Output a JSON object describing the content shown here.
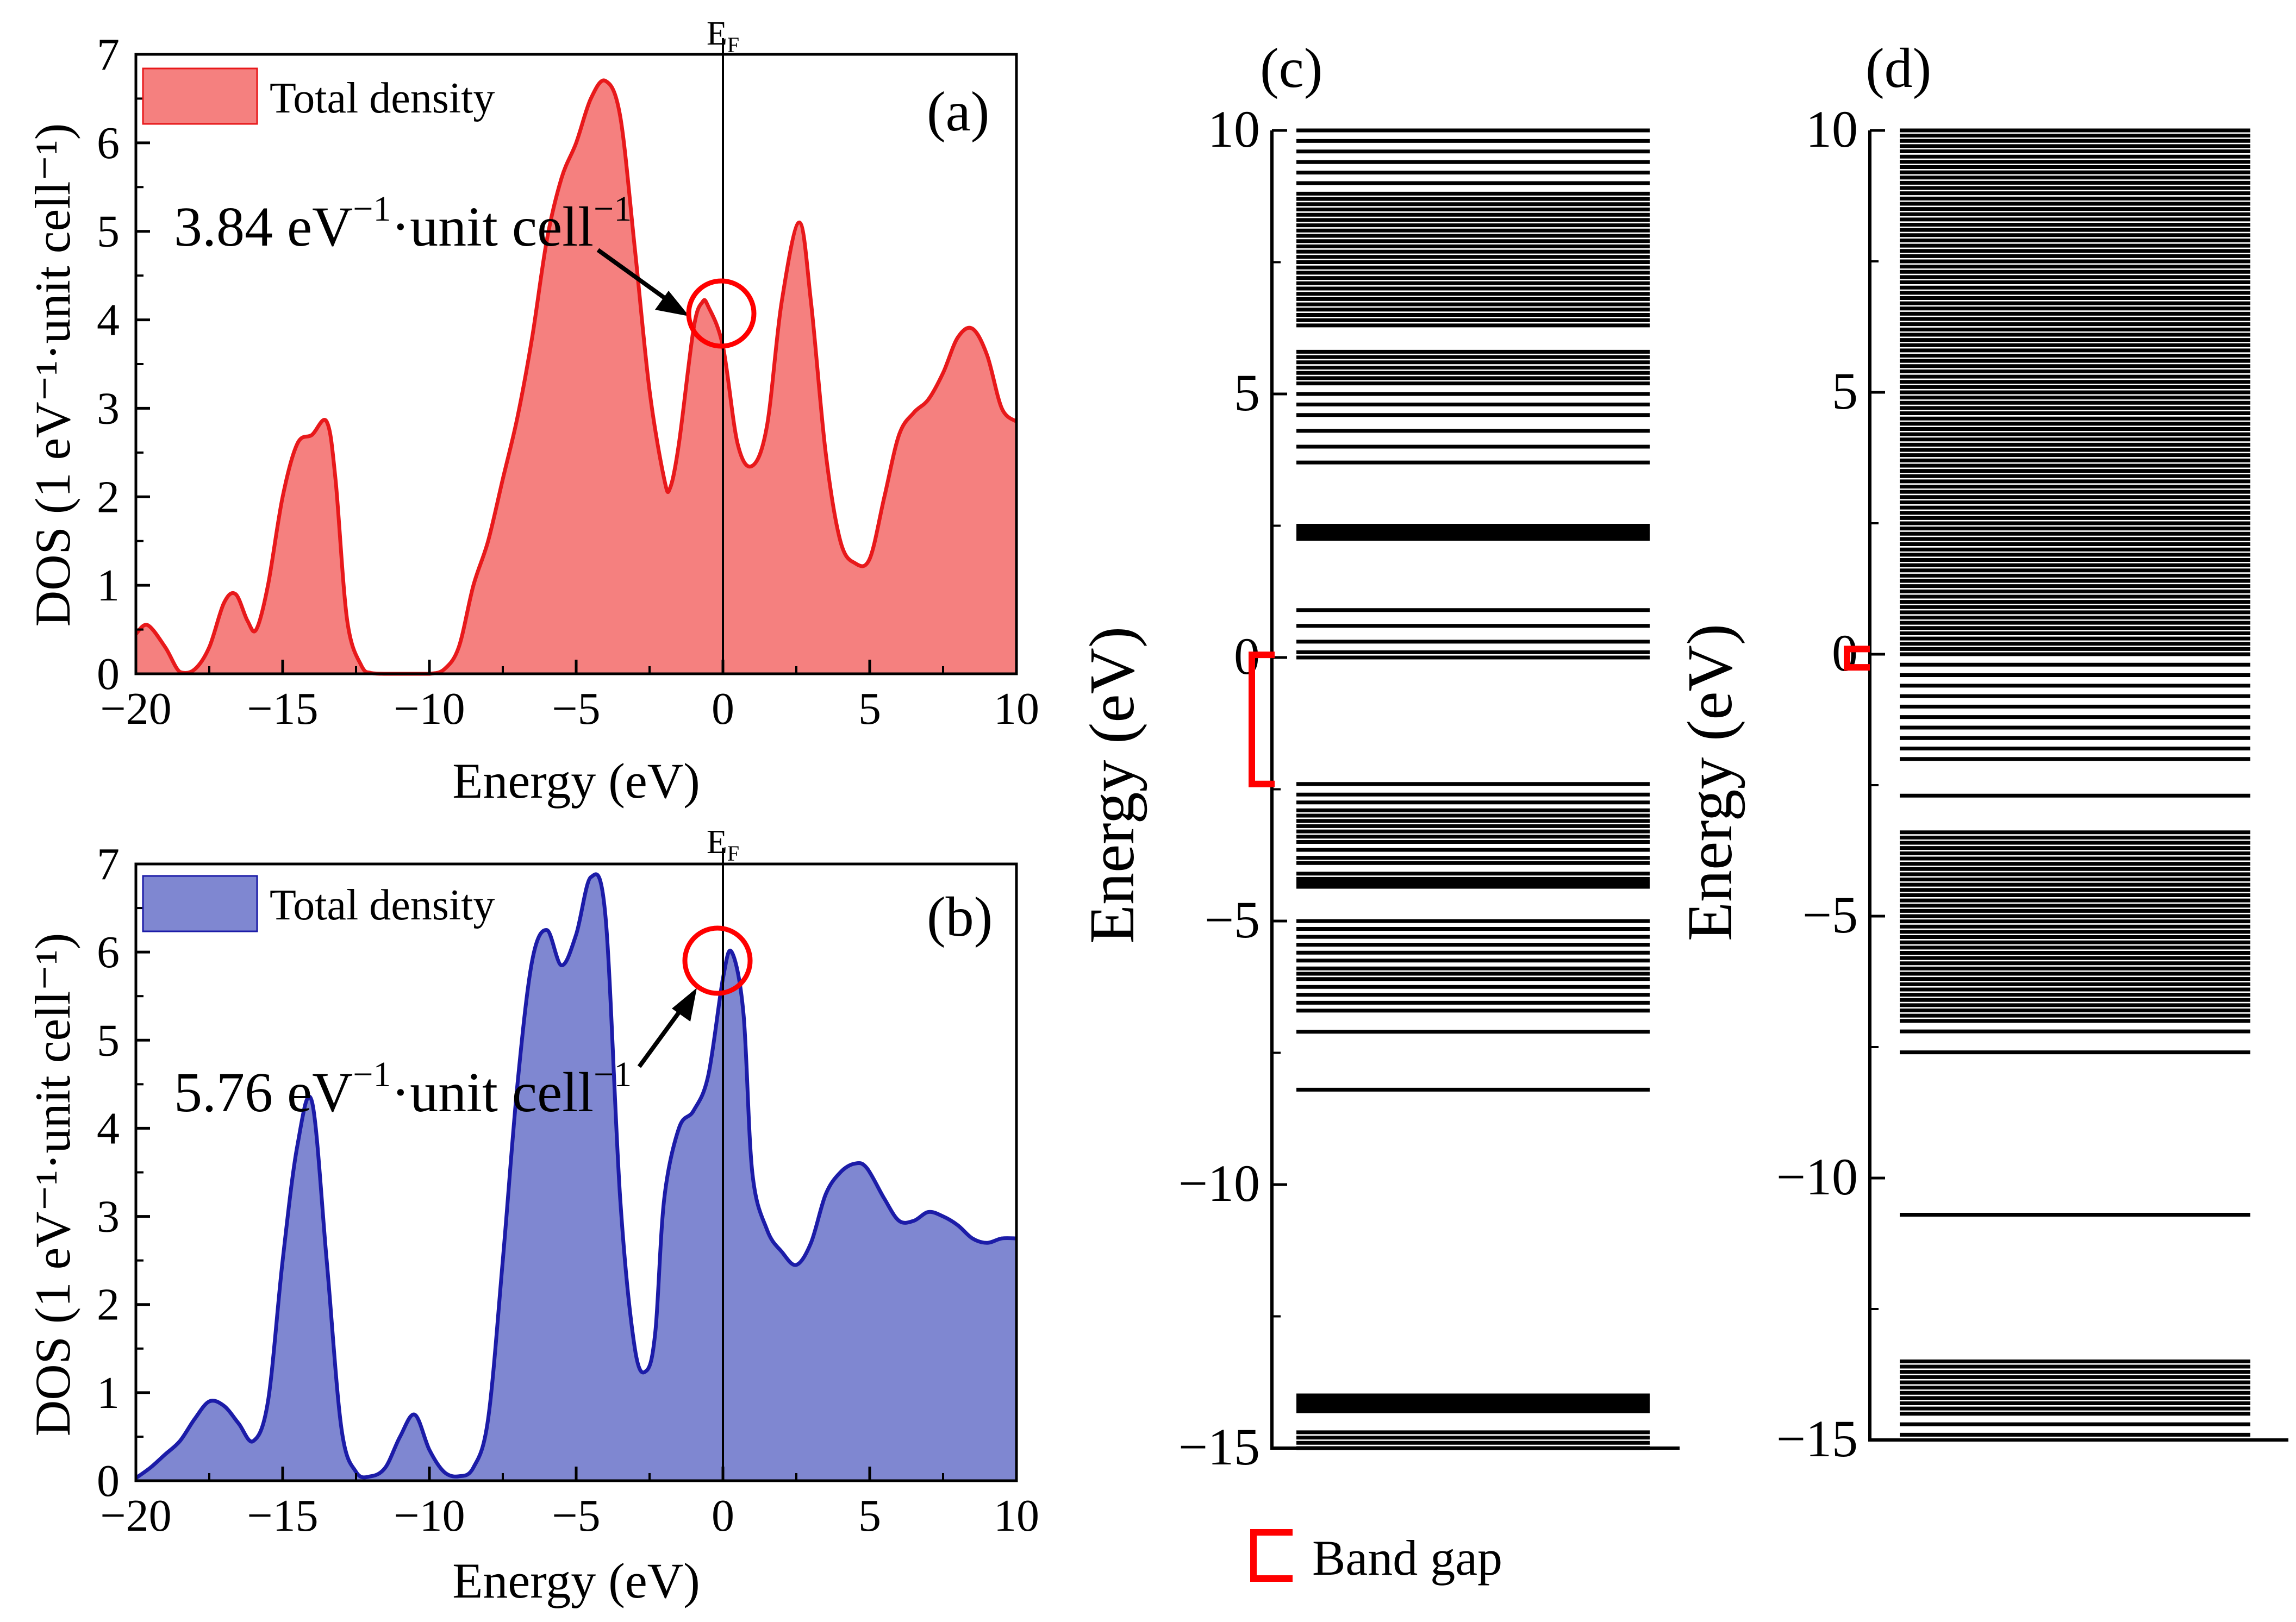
{
  "chart_data": [
    {
      "id": "a",
      "type": "area",
      "panel_label": "(a)",
      "xlabel": "Energy (eV)",
      "ylabel": "DOS (1 eV⁻¹·unit cell⁻¹)",
      "xlim": [
        -20,
        10
      ],
      "ylim": [
        0,
        7
      ],
      "xticks": [
        -20,
        -15,
        -10,
        -5,
        0,
        5,
        10
      ],
      "xtick_labels": [
        "−20",
        "−15",
        "−10",
        "−5",
        "0",
        "5",
        "10"
      ],
      "yticks": [
        0,
        1,
        2,
        3,
        4,
        5,
        6,
        7
      ],
      "ytick_labels": [
        "0",
        "1",
        "2",
        "3",
        "4",
        "5",
        "6",
        "7"
      ],
      "legend": "Total density",
      "fermi_label": "E",
      "fermi_sub": "F",
      "fill_color": "#f5807f",
      "line_color": "#e8191b",
      "annotation": {
        "text_main": "3.84 eV",
        "sup1": "−1",
        "text_mid": "·unit cell",
        "sup2": "−1",
        "at_x": 0,
        "at_y": 4.05
      },
      "series": [
        {
          "name": "Total density",
          "x": [
            -20,
            -19.6,
            -19,
            -18.5,
            -18,
            -17.5,
            -17,
            -16.6,
            -16.2,
            -15.9,
            -15.5,
            -15,
            -14.5,
            -14,
            -13.5,
            -13.2,
            -12.8,
            -12.3,
            -12,
            -11.5,
            -11,
            -10.5,
            -10,
            -9.5,
            -9,
            -8.5,
            -8,
            -7.5,
            -7,
            -6.5,
            -6,
            -5.5,
            -5,
            -4.5,
            -4,
            -3.5,
            -3,
            -2.5,
            -2,
            -1.8,
            -1.5,
            -1,
            -0.7,
            -0.5,
            0,
            0.5,
            1,
            1.5,
            2,
            2.6,
            3,
            3.5,
            4,
            4.5,
            5,
            5.5,
            6,
            6.5,
            7,
            7.5,
            8,
            8.5,
            9,
            9.5,
            10
          ],
          "y": [
            0.45,
            0.55,
            0.3,
            0.02,
            0.05,
            0.3,
            0.8,
            0.9,
            0.6,
            0.5,
            1.0,
            2.0,
            2.6,
            2.7,
            2.85,
            2.2,
            0.6,
            0.08,
            0.01,
            0,
            0,
            0,
            0,
            0.05,
            0.3,
            1.0,
            1.5,
            2.2,
            2.9,
            3.8,
            4.9,
            5.6,
            6.0,
            6.5,
            6.7,
            6.3,
            4.8,
            3.2,
            2.2,
            2.1,
            2.6,
            3.9,
            4.2,
            4.15,
            3.7,
            2.6,
            2.35,
            2.8,
            4.2,
            5.1,
            4.2,
            2.5,
            1.5,
            1.25,
            1.3,
            2.0,
            2.7,
            2.95,
            3.1,
            3.4,
            3.8,
            3.9,
            3.6,
            3.0,
            2.85
          ]
        }
      ]
    },
    {
      "id": "b",
      "type": "area",
      "panel_label": "(b)",
      "xlabel": "Energy (eV)",
      "ylabel": "DOS (1 eV⁻¹·unit cell⁻¹)",
      "xlim": [
        -20,
        10
      ],
      "ylim": [
        0,
        7
      ],
      "xticks": [
        -20,
        -15,
        -10,
        -5,
        0,
        5,
        10
      ],
      "xtick_labels": [
        "−20",
        "−15",
        "−10",
        "−5",
        "0",
        "5",
        "10"
      ],
      "yticks": [
        0,
        1,
        2,
        3,
        4,
        5,
        6,
        7
      ],
      "ytick_labels": [
        "0",
        "1",
        "2",
        "3",
        "4",
        "5",
        "6",
        "7"
      ],
      "legend": "Total density",
      "fermi_label": "E",
      "fermi_sub": "F",
      "fill_color": "#7f87d1",
      "line_color": "#1c1ca8",
      "annotation": {
        "text_main": "5.76 eV",
        "sup1": "−1",
        "text_mid": "·unit cell",
        "sup2": "−1",
        "at_x": 0,
        "at_y": 5.9
      },
      "series": [
        {
          "name": "Total density",
          "x": [
            -20,
            -19.5,
            -19,
            -18.5,
            -18,
            -17.5,
            -17,
            -16.5,
            -16,
            -15.5,
            -15,
            -14.5,
            -14,
            -13.5,
            -13,
            -12.5,
            -12,
            -11.5,
            -11,
            -10.5,
            -10,
            -9.5,
            -9,
            -8.5,
            -8,
            -7.5,
            -7,
            -6.5,
            -6,
            -5.5,
            -5,
            -4.5,
            -4,
            -3.5,
            -3,
            -2.6,
            -2.3,
            -2,
            -1.5,
            -1,
            -0.5,
            0,
            0.3,
            0.7,
            1,
            1.5,
            2,
            2.5,
            3,
            3.5,
            4,
            4.5,
            4.9,
            5.5,
            6,
            6.5,
            7,
            7.5,
            8,
            8.5,
            9,
            9.5,
            10
          ],
          "y": [
            0.03,
            0.15,
            0.3,
            0.45,
            0.7,
            0.9,
            0.85,
            0.65,
            0.45,
            0.9,
            2.5,
            3.8,
            4.3,
            2.5,
            0.6,
            0.1,
            0.05,
            0.15,
            0.5,
            0.75,
            0.35,
            0.1,
            0.05,
            0.15,
            0.7,
            2.5,
            4.5,
            5.9,
            6.25,
            5.85,
            6.2,
            6.85,
            6.4,
            3.2,
            1.5,
            1.25,
            1.7,
            3.2,
            4.0,
            4.2,
            4.6,
            5.7,
            6.0,
            5.3,
            3.5,
            2.85,
            2.6,
            2.45,
            2.7,
            3.25,
            3.5,
            3.6,
            3.55,
            3.2,
            2.95,
            2.95,
            3.05,
            3.0,
            2.9,
            2.75,
            2.7,
            2.75,
            2.75
          ]
        }
      ]
    },
    {
      "id": "c",
      "type": "energy_levels",
      "panel_label": "(c)",
      "ylabel": "Energy (eV)",
      "ylim": [
        -15,
        10
      ],
      "yticks": [
        -15,
        -10,
        -5,
        0,
        5,
        10
      ],
      "ytick_labels": [
        "−15",
        "−10",
        "−5",
        "0",
        "5",
        "10"
      ],
      "band_gap": [
        -2.4,
        0.05
      ],
      "levels": [
        10.0,
        9.8,
        9.6,
        9.4,
        9.2,
        9.0,
        8.8,
        8.7,
        8.6,
        8.5,
        8.4,
        8.3,
        8.2,
        8.1,
        8.0,
        7.9,
        7.8,
        7.7,
        7.6,
        7.5,
        7.4,
        7.3,
        7.2,
        7.1,
        7.0,
        6.9,
        6.8,
        6.7,
        6.6,
        6.5,
        6.4,
        6.3,
        5.8,
        5.7,
        5.6,
        5.5,
        5.4,
        5.3,
        5.2,
        5.0,
        4.8,
        4.6,
        4.3,
        4.0,
        3.7,
        2.5,
        2.45,
        2.4,
        2.35,
        2.3,
        2.25,
        0.9,
        0.6,
        0.3,
        0.1,
        0.0,
        -2.4,
        -2.6,
        -2.75,
        -2.9,
        -3.0,
        -3.1,
        -3.2,
        -3.3,
        -3.4,
        -3.5,
        -3.65,
        -3.8,
        -3.9,
        -4.1,
        -4.2,
        -4.25,
        -4.3,
        -4.35,
        -5.0,
        -5.15,
        -5.3,
        -5.45,
        -5.6,
        -5.75,
        -5.9,
        -6.0,
        -6.1,
        -6.25,
        -6.4,
        -6.55,
        -6.7,
        -7.1,
        -8.2,
        -14.0,
        -14.05,
        -14.1,
        -14.15,
        -14.2,
        -14.25,
        -14.3,
        -14.7,
        -14.8,
        -14.9,
        -15.0
      ]
    },
    {
      "id": "d",
      "type": "energy_levels",
      "panel_label": "(d)",
      "ylabel": "Energy (eV)",
      "ylim": [
        -15,
        10
      ],
      "yticks": [
        -15,
        -10,
        -5,
        0,
        5,
        10
      ],
      "ytick_labels": [
        "−15",
        "−10",
        "−5",
        "0",
        "5",
        "10"
      ],
      "band_gap": [
        -0.25,
        0.1
      ],
      "levels": [
        10.0,
        9.9,
        9.8,
        9.7,
        9.6,
        9.5,
        9.4,
        9.3,
        9.2,
        9.1,
        9.0,
        8.9,
        8.8,
        8.7,
        8.6,
        8.5,
        8.4,
        8.3,
        8.2,
        8.1,
        8.0,
        7.9,
        7.8,
        7.7,
        7.6,
        7.5,
        7.4,
        7.3,
        7.2,
        7.1,
        7.0,
        6.9,
        6.8,
        6.7,
        6.6,
        6.5,
        6.4,
        6.3,
        6.2,
        6.1,
        6.0,
        5.9,
        5.8,
        5.7,
        5.6,
        5.5,
        5.4,
        5.3,
        5.2,
        5.1,
        5.0,
        4.9,
        4.8,
        4.7,
        4.6,
        4.5,
        4.4,
        4.3,
        4.2,
        4.1,
        4.0,
        3.9,
        3.8,
        3.7,
        3.6,
        3.5,
        3.4,
        3.3,
        3.2,
        3.1,
        3.0,
        2.9,
        2.8,
        2.7,
        2.6,
        2.5,
        2.4,
        2.3,
        2.2,
        2.1,
        2.0,
        1.9,
        1.8,
        1.7,
        1.6,
        1.5,
        1.4,
        1.3,
        1.2,
        1.1,
        1.0,
        0.9,
        0.8,
        0.7,
        0.6,
        0.5,
        0.4,
        0.3,
        0.2,
        0.1,
        0.0,
        -0.2,
        -0.4,
        -0.6,
        -0.8,
        -1.0,
        -1.2,
        -1.4,
        -1.6,
        -1.8,
        -2.0,
        -2.7,
        -3.4,
        -3.5,
        -3.6,
        -3.7,
        -3.8,
        -3.9,
        -4.0,
        -4.1,
        -4.2,
        -4.3,
        -4.4,
        -4.5,
        -4.6,
        -4.7,
        -4.8,
        -4.9,
        -5.0,
        -5.1,
        -5.2,
        -5.3,
        -5.4,
        -5.5,
        -5.6,
        -5.7,
        -5.8,
        -5.9,
        -6.0,
        -6.1,
        -6.2,
        -6.3,
        -6.4,
        -6.5,
        -6.6,
        -6.7,
        -6.8,
        -6.9,
        -7.0,
        -7.2,
        -7.6,
        -10.7,
        -13.5,
        -13.6,
        -13.7,
        -13.8,
        -13.9,
        -14.0,
        -14.1,
        -14.2,
        -14.3,
        -14.4,
        -14.5,
        -14.7,
        -14.9
      ]
    }
  ],
  "band_gap_legend": "Band gap"
}
